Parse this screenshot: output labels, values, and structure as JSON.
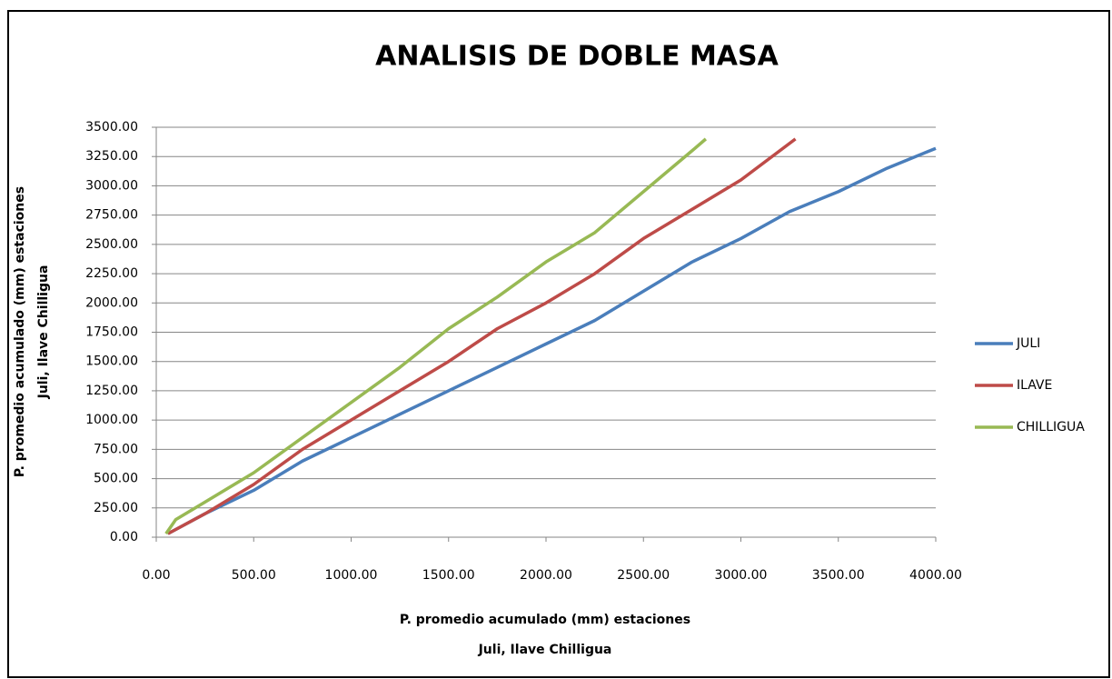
{
  "chart_data": {
    "type": "line",
    "title": "ANALISIS DE DOBLE MASA",
    "xlabel": [
      "P. promedio acumulado (mm) estaciones",
      "Juli, Ilave Chilligua"
    ],
    "ylabel": [
      "P. promedio acumulado (mm) estaciones",
      "Juli, Ilave Chilligua"
    ],
    "xlim": [
      0,
      4000
    ],
    "xticks": [
      {
        "value": 0,
        "label": "0.00"
      },
      {
        "value": 500,
        "label": "500.00"
      },
      {
        "value": 1000,
        "label": "1000.00"
      },
      {
        "value": 1500,
        "label": "1500.00"
      },
      {
        "value": 2000,
        "label": "2000.00"
      },
      {
        "value": 2500,
        "label": "2500.00"
      },
      {
        "value": 3000,
        "label": "3000.00"
      },
      {
        "value": 3500,
        "label": "3500.00"
      },
      {
        "value": 4000,
        "label": "4000.00"
      }
    ],
    "ylim": [
      0,
      3500
    ],
    "yticks": [
      {
        "value": 0,
        "label": "0.00"
      },
      {
        "value": 250,
        "label": "250.00"
      },
      {
        "value": 500,
        "label": "500.00"
      },
      {
        "value": 750,
        "label": "750.00"
      },
      {
        "value": 1000,
        "label": "1000.00"
      },
      {
        "value": 1250,
        "label": "1250.00"
      },
      {
        "value": 1500,
        "label": "1500.00"
      },
      {
        "value": 1750,
        "label": "1750.00"
      },
      {
        "value": 2000,
        "label": "2000.00"
      },
      {
        "value": 2250,
        "label": "2250.00"
      },
      {
        "value": 2500,
        "label": "2500.00"
      },
      {
        "value": 2750,
        "label": "2750.00"
      },
      {
        "value": 3000,
        "label": "3000.00"
      },
      {
        "value": 3250,
        "label": "3250.00"
      },
      {
        "value": 3500,
        "label": "3500.00"
      }
    ],
    "grid": true,
    "legend": "right",
    "series": [
      {
        "name": "JULI",
        "color": "#4a7ebb",
        "x": [
          60,
          250,
          500,
          750,
          1000,
          1250,
          1500,
          1750,
          2000,
          2250,
          2500,
          2750,
          3000,
          3250,
          3500,
          3750,
          4000
        ],
        "values": [
          30,
          200,
          400,
          650,
          850,
          1050,
          1250,
          1450,
          1650,
          1850,
          2100,
          2350,
          2550,
          2780,
          2950,
          3150,
          3320
        ]
      },
      {
        "name": "ILAVE",
        "color": "#be4b48",
        "x": [
          60,
          250,
          500,
          750,
          1000,
          1250,
          1500,
          1750,
          2000,
          2250,
          2500,
          2750,
          3000,
          3280
        ],
        "values": [
          30,
          200,
          450,
          750,
          1000,
          1250,
          1500,
          1780,
          2000,
          2250,
          2550,
          2800,
          3050,
          3400
        ]
      },
      {
        "name": "CHILLIGUA",
        "color": "#98b954",
        "x": [
          50,
          100,
          250,
          500,
          750,
          1000,
          1250,
          1500,
          1750,
          2000,
          2250,
          2500,
          2750,
          2820
        ],
        "values": [
          30,
          150,
          300,
          550,
          850,
          1150,
          1450,
          1780,
          2050,
          2350,
          2600,
          2950,
          3300,
          3400
        ]
      }
    ]
  }
}
